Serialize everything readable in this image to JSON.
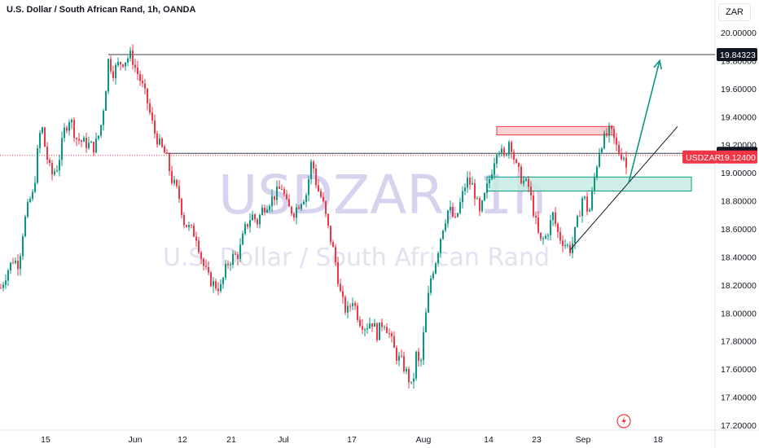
{
  "header": {
    "title": "U.S. Dollar / South African Rand, 1h, OANDA",
    "currency": "ZAR"
  },
  "watermark": {
    "symbol_line": "USDZAR, 1h",
    "name_line": "U.S. Dollar / South African Rand"
  },
  "colors": {
    "bull": "#089981",
    "bear": "#f23645",
    "resistance_zone": "#f7c9cd",
    "support_zone": "#c7ebe3",
    "arrow": "#089981",
    "level_line": "#131722"
  },
  "chart_data": {
    "type": "candlestick",
    "title": "U.S. Dollar / South African Rand, 1h, OANDA",
    "xlabel": "",
    "ylabel": "",
    "ylim": [
      17.2,
      20.1
    ],
    "y_ticks": [
      "20.00000",
      "19.80000",
      "19.60000",
      "19.40000",
      "19.20000",
      "19.00000",
      "18.80000",
      "18.60000",
      "18.40000",
      "18.20000",
      "18.00000",
      "17.80000",
      "17.60000",
      "17.40000",
      "17.20000"
    ],
    "x_ticks": [
      "15",
      "Jun",
      "12",
      "21",
      "Jul",
      "17",
      "Aug",
      "14",
      "23",
      "Sep",
      "18"
    ],
    "price_path": [
      {
        "x": 0,
        "y": 18.18
      },
      {
        "x": 8,
        "y": 18.3
      },
      {
        "x": 15,
        "y": 18.38
      },
      {
        "x": 22,
        "y": 18.35
      },
      {
        "x": 28,
        "y": 18.62
      },
      {
        "x": 35,
        "y": 18.8
      },
      {
        "x": 40,
        "y": 18.85
      },
      {
        "x": 46,
        "y": 19.2
      },
      {
        "x": 50,
        "y": 19.35
      },
      {
        "x": 55,
        "y": 19.15
      },
      {
        "x": 62,
        "y": 18.98
      },
      {
        "x": 70,
        "y": 19.05
      },
      {
        "x": 78,
        "y": 19.3
      },
      {
        "x": 85,
        "y": 19.4
      },
      {
        "x": 92,
        "y": 19.25
      },
      {
        "x": 100,
        "y": 19.22
      },
      {
        "x": 108,
        "y": 19.2
      },
      {
        "x": 115,
        "y": 19.18
      },
      {
        "x": 122,
        "y": 19.3
      },
      {
        "x": 128,
        "y": 19.55
      },
      {
        "x": 132,
        "y": 19.8
      },
      {
        "x": 138,
        "y": 19.72
      },
      {
        "x": 145,
        "y": 19.78
      },
      {
        "x": 152,
        "y": 19.8
      },
      {
        "x": 160,
        "y": 19.84
      },
      {
        "x": 165,
        "y": 19.75
      },
      {
        "x": 172,
        "y": 19.65
      },
      {
        "x": 180,
        "y": 19.5
      },
      {
        "x": 188,
        "y": 19.3
      },
      {
        "x": 195,
        "y": 19.2
      },
      {
        "x": 203,
        "y": 19.12
      },
      {
        "x": 210,
        "y": 18.95
      },
      {
        "x": 218,
        "y": 18.85
      },
      {
        "x": 225,
        "y": 18.65
      },
      {
        "x": 232,
        "y": 18.6
      },
      {
        "x": 240,
        "y": 18.55
      },
      {
        "x": 248,
        "y": 18.35
      },
      {
        "x": 255,
        "y": 18.25
      },
      {
        "x": 262,
        "y": 18.2
      },
      {
        "x": 270,
        "y": 18.18
      },
      {
        "x": 278,
        "y": 18.35
      },
      {
        "x": 285,
        "y": 18.4
      },
      {
        "x": 292,
        "y": 18.42
      },
      {
        "x": 300,
        "y": 18.6
      },
      {
        "x": 308,
        "y": 18.7
      },
      {
        "x": 315,
        "y": 18.65
      },
      {
        "x": 322,
        "y": 18.75
      },
      {
        "x": 330,
        "y": 18.8
      },
      {
        "x": 338,
        "y": 18.85
      },
      {
        "x": 345,
        "y": 18.9
      },
      {
        "x": 352,
        "y": 18.75
      },
      {
        "x": 360,
        "y": 18.72
      },
      {
        "x": 368,
        "y": 18.8
      },
      {
        "x": 375,
        "y": 18.85
      },
      {
        "x": 382,
        "y": 19.1
      },
      {
        "x": 388,
        "y": 18.9
      },
      {
        "x": 395,
        "y": 18.8
      },
      {
        "x": 402,
        "y": 18.6
      },
      {
        "x": 410,
        "y": 18.4
      },
      {
        "x": 418,
        "y": 18.1
      },
      {
        "x": 425,
        "y": 18.0
      },
      {
        "x": 432,
        "y": 18.1
      },
      {
        "x": 440,
        "y": 17.95
      },
      {
        "x": 448,
        "y": 17.9
      },
      {
        "x": 455,
        "y": 17.95
      },
      {
        "x": 462,
        "y": 17.85
      },
      {
        "x": 470,
        "y": 17.95
      },
      {
        "x": 477,
        "y": 17.85
      },
      {
        "x": 485,
        "y": 17.7
      },
      {
        "x": 492,
        "y": 17.65
      },
      {
        "x": 500,
        "y": 17.55
      },
      {
        "x": 505,
        "y": 17.45
      },
      {
        "x": 510,
        "y": 17.7
      },
      {
        "x": 515,
        "y": 17.6
      },
      {
        "x": 520,
        "y": 17.9
      },
      {
        "x": 528,
        "y": 18.25
      },
      {
        "x": 535,
        "y": 18.4
      },
      {
        "x": 542,
        "y": 18.6
      },
      {
        "x": 550,
        "y": 18.75
      },
      {
        "x": 558,
        "y": 18.65
      },
      {
        "x": 565,
        "y": 18.8
      },
      {
        "x": 572,
        "y": 18.95
      },
      {
        "x": 580,
        "y": 18.9
      },
      {
        "x": 588,
        "y": 18.7
      },
      {
        "x": 595,
        "y": 18.85
      },
      {
        "x": 602,
        "y": 19.0
      },
      {
        "x": 610,
        "y": 19.2
      },
      {
        "x": 618,
        "y": 19.1
      },
      {
        "x": 625,
        "y": 19.25
      },
      {
        "x": 632,
        "y": 19.05
      },
      {
        "x": 640,
        "y": 18.95
      },
      {
        "x": 648,
        "y": 18.9
      },
      {
        "x": 655,
        "y": 18.7
      },
      {
        "x": 662,
        "y": 18.5
      },
      {
        "x": 670,
        "y": 18.55
      },
      {
        "x": 678,
        "y": 18.7
      },
      {
        "x": 685,
        "y": 18.55
      },
      {
        "x": 692,
        "y": 18.5
      },
      {
        "x": 700,
        "y": 18.45
      },
      {
        "x": 708,
        "y": 18.65
      },
      {
        "x": 715,
        "y": 18.85
      },
      {
        "x": 722,
        "y": 18.7
      },
      {
        "x": 730,
        "y": 19.0
      },
      {
        "x": 736,
        "y": 19.2
      },
      {
        "x": 742,
        "y": 19.25
      },
      {
        "x": 748,
        "y": 19.3
      },
      {
        "x": 752,
        "y": 19.25
      },
      {
        "x": 758,
        "y": 19.15
      },
      {
        "x": 765,
        "y": 19.12
      },
      {
        "x": 770,
        "y": 18.98
      }
    ],
    "levels": [
      {
        "label": "19.84323",
        "value": 19.84323,
        "style": "solid"
      },
      {
        "label": "19.13875",
        "value": 19.13875,
        "style": "solid"
      },
      {
        "label": "19.12400",
        "value": 19.124,
        "style": "dotted"
      }
    ],
    "current_price": {
      "symbol": "USDZAR",
      "value": "19.12400"
    },
    "zones": [
      {
        "kind": "resistance",
        "y1": 19.27,
        "y2": 19.33
      },
      {
        "kind": "support",
        "y1": 18.87,
        "y2": 18.97
      }
    ],
    "trendline": {
      "from": {
        "x": 700,
        "y": 18.45
      },
      "to": {
        "x": 832,
        "y": 19.33
      }
    },
    "arrow": {
      "from": {
        "x": 772,
        "y": 18.93
      },
      "to": {
        "x": 810,
        "y": 19.8
      }
    }
  }
}
